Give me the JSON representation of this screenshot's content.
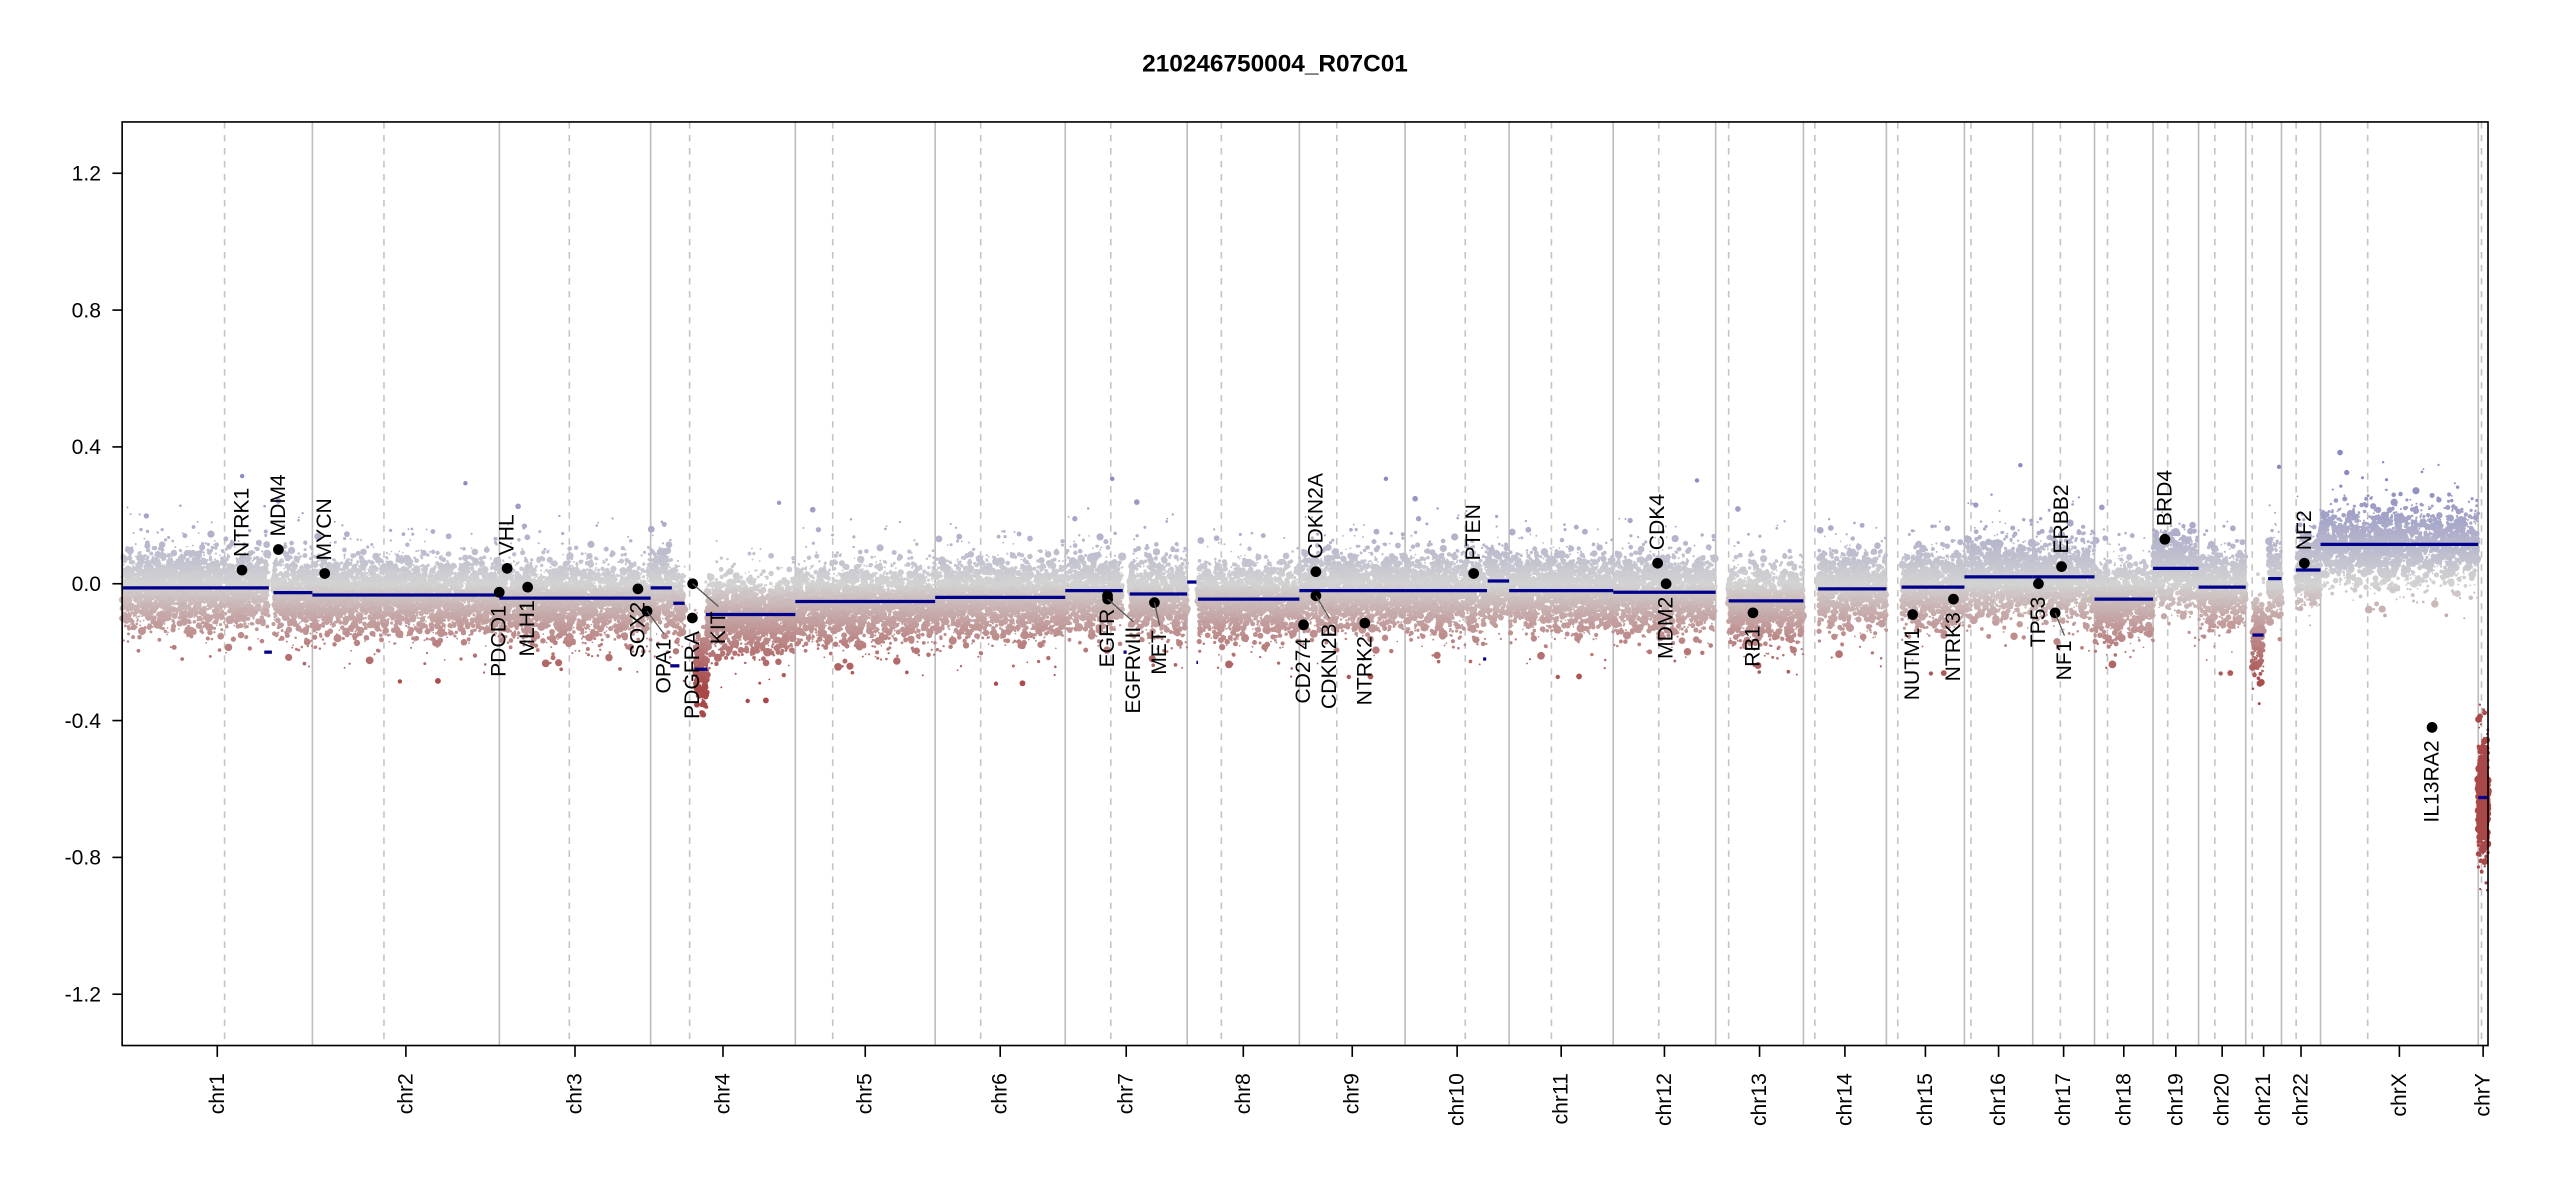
{
  "chart_data": {
    "type": "scatter",
    "title": "210246750004_R07C01",
    "xlabel": "",
    "ylabel": "",
    "ylim": [
      -1.35,
      1.35
    ],
    "yticks": [
      "1.2",
      "0.8",
      "0.4",
      "0.0",
      "-0.4",
      "-0.8",
      "-1.2"
    ],
    "ytick_values": [
      1.2,
      0.8,
      0.4,
      0.0,
      -0.4,
      -0.8,
      -1.2
    ],
    "grid": "chromosome boundaries (solid) and centromeres (dashed)",
    "chromosomes": [
      {
        "name": "chr1",
        "length_mb": 249
      },
      {
        "name": "chr2",
        "length_mb": 243
      },
      {
        "name": "chr3",
        "length_mb": 198
      },
      {
        "name": "chr4",
        "length_mb": 191
      },
      {
        "name": "chr5",
        "length_mb": 181
      },
      {
        "name": "chr6",
        "length_mb": 171
      },
      {
        "name": "chr7",
        "length_mb": 159
      },
      {
        "name": "chr8",
        "length_mb": 146
      },
      {
        "name": "chr9",
        "length_mb": 141
      },
      {
        "name": "chr10",
        "length_mb": 136
      },
      {
        "name": "chr11",
        "length_mb": 135
      },
      {
        "name": "chr12",
        "length_mb": 134
      },
      {
        "name": "chr13",
        "length_mb": 115
      },
      {
        "name": "chr14",
        "length_mb": 107
      },
      {
        "name": "chr15",
        "length_mb": 103
      },
      {
        "name": "chr16",
        "length_mb": 90
      },
      {
        "name": "chr17",
        "length_mb": 81
      },
      {
        "name": "chr18",
        "length_mb": 78
      },
      {
        "name": "chr19",
        "length_mb": 59
      },
      {
        "name": "chr20",
        "length_mb": 63
      },
      {
        "name": "chr21",
        "length_mb": 48
      },
      {
        "name": "chr22",
        "length_mb": 51
      },
      {
        "name": "chrX",
        "length_mb": 155
      },
      {
        "name": "chrY",
        "length_mb": 59
      }
    ],
    "segments": [
      {
        "chr": "chr1",
        "start": 0,
        "end": 192,
        "value": -0.012
      },
      {
        "chr": "chr1",
        "start": 186,
        "end": 196,
        "value": -0.2
      },
      {
        "chr": "chr1",
        "start": 198,
        "end": 249,
        "value": -0.026
      },
      {
        "chr": "chr2",
        "start": 0,
        "end": 243,
        "value": -0.033
      },
      {
        "chr": "chr3",
        "start": 0,
        "end": 198,
        "value": -0.042
      },
      {
        "chr": "chr4",
        "start": 0,
        "end": 28,
        "value": -0.012
      },
      {
        "chr": "chr4",
        "start": 26,
        "end": 38,
        "value": -0.24
      },
      {
        "chr": "chr4",
        "start": 30,
        "end": 45,
        "value": -0.057
      },
      {
        "chr": "chr4",
        "start": 58,
        "end": 75,
        "value": -0.25
      },
      {
        "chr": "chr4",
        "start": 73,
        "end": 191,
        "value": -0.09
      },
      {
        "chr": "chr5",
        "start": 0,
        "end": 181,
        "value": -0.052
      },
      {
        "chr": "chr6",
        "start": 0,
        "end": 171,
        "value": -0.04
      },
      {
        "chr": "chr7",
        "start": 0,
        "end": 75,
        "value": -0.02
      },
      {
        "chr": "chr7",
        "start": 76,
        "end": 80,
        "value": -0.2
      },
      {
        "chr": "chr7",
        "start": 84,
        "end": 159,
        "value": -0.03
      },
      {
        "chr": "chr8",
        "start": 0,
        "end": 12,
        "value": 0.005
      },
      {
        "chr": "chr8",
        "start": 12,
        "end": 14,
        "value": -0.23
      },
      {
        "chr": "chr8",
        "start": 14,
        "end": 146,
        "value": -0.045
      },
      {
        "chr": "chr9",
        "start": 0,
        "end": 141,
        "value": -0.02
      },
      {
        "chr": "chr10",
        "start": 0,
        "end": 107,
        "value": -0.02
      },
      {
        "chr": "chr10",
        "start": 102,
        "end": 106,
        "value": -0.22
      },
      {
        "chr": "chr10",
        "start": 108,
        "end": 136,
        "value": 0.008
      },
      {
        "chr": "chr11",
        "start": 0,
        "end": 135,
        "value": -0.02
      },
      {
        "chr": "chr12",
        "start": 0,
        "end": 134,
        "value": -0.025
      },
      {
        "chr": "chr13",
        "start": 17,
        "end": 115,
        "value": -0.05
      },
      {
        "chr": "chr14",
        "start": 19,
        "end": 107,
        "value": -0.015
      },
      {
        "chr": "chr15",
        "start": 20,
        "end": 103,
        "value": -0.01
      },
      {
        "chr": "chr16",
        "start": 0,
        "end": 90,
        "value": 0.02
      },
      {
        "chr": "chr17",
        "start": 0,
        "end": 81,
        "value": 0.02
      },
      {
        "chr": "chr18",
        "start": 0,
        "end": 78,
        "value": -0.045
      },
      {
        "chr": "chr19",
        "start": 0,
        "end": 59,
        "value": 0.045
      },
      {
        "chr": "chr20",
        "start": 0,
        "end": 63,
        "value": -0.01
      },
      {
        "chr": "chr21",
        "start": 9,
        "end": 24,
        "value": -0.15
      },
      {
        "chr": "chr21",
        "start": 30,
        "end": 48,
        "value": 0.015
      },
      {
        "chr": "chr22",
        "start": 19,
        "end": 51,
        "value": 0.04
      },
      {
        "chr": "chrX",
        "start": 0,
        "end": 155,
        "value": 0.115
      },
      {
        "chr": "chrY",
        "start": 0,
        "end": 59,
        "value": -0.625
      }
    ],
    "genes": [
      {
        "name": "NTRK1",
        "chr": "chr1",
        "pos": 156.8,
        "value": 0.04
      },
      {
        "name": "MDM4",
        "chr": "chr1",
        "pos": 204.5,
        "value": 0.1
      },
      {
        "name": "MYCN",
        "chr": "chr2",
        "pos": 16.0,
        "value": 0.03
      },
      {
        "name": "PDCD1",
        "chr": "chr2",
        "pos": 242.8,
        "value": -0.025
      },
      {
        "name": "VHL",
        "chr": "chr3",
        "pos": 10.2,
        "value": 0.045
      },
      {
        "name": "MLH1",
        "chr": "chr3",
        "pos": 37.0,
        "value": -0.01
      },
      {
        "name": "SOX2",
        "chr": "chr3",
        "pos": 181.4,
        "value": -0.015
      },
      {
        "name": "OPA1",
        "chr": "chr3",
        "pos": 193.3,
        "value": -0.08
      },
      {
        "name": "PDGFRA",
        "chr": "chr4",
        "pos": 55.1,
        "value": -0.1
      },
      {
        "name": "KIT",
        "chr": "chr4",
        "pos": 55.5,
        "value": 0.0
      },
      {
        "name": "EGFR",
        "chr": "chr7",
        "pos": 55.1,
        "value": -0.035
      },
      {
        "name": "EGFRvIII",
        "chr": "chr7",
        "pos": 55.3,
        "value": -0.045
      },
      {
        "name": "MET",
        "chr": "chr7",
        "pos": 116.3,
        "value": -0.055
      },
      {
        "name": "CD274",
        "chr": "chr9",
        "pos": 5.5,
        "value": -0.12
      },
      {
        "name": "CDKN2A",
        "chr": "chr9",
        "pos": 21.97,
        "value": 0.035
      },
      {
        "name": "CDKN2B",
        "chr": "chr9",
        "pos": 22.0,
        "value": -0.035
      },
      {
        "name": "NTRK2",
        "chr": "chr9",
        "pos": 87.3,
        "value": -0.115
      },
      {
        "name": "PTEN",
        "chr": "chr10",
        "pos": 89.6,
        "value": 0.03
      },
      {
        "name": "CDK4",
        "chr": "chr12",
        "pos": 58.1,
        "value": 0.06
      },
      {
        "name": "MDM2",
        "chr": "chr12",
        "pos": 69.2,
        "value": 0.0
      },
      {
        "name": "RB1",
        "chr": "chr13",
        "pos": 48.9,
        "value": -0.085
      },
      {
        "name": "NUTM1",
        "chr": "chr15",
        "pos": 34.6,
        "value": -0.09
      },
      {
        "name": "NTRK3",
        "chr": "chr15",
        "pos": 88.5,
        "value": -0.045
      },
      {
        "name": "TP53",
        "chr": "chr17",
        "pos": 7.5,
        "value": 0.0
      },
      {
        "name": "NF1",
        "chr": "chr17",
        "pos": 29.4,
        "value": -0.085
      },
      {
        "name": "ERBB2",
        "chr": "chr17",
        "pos": 37.8,
        "value": 0.05
      },
      {
        "name": "BRD4",
        "chr": "chr19",
        "pos": 15.3,
        "value": 0.13
      },
      {
        "name": "NF2",
        "chr": "chr22",
        "pos": 29.9,
        "value": 0.06
      },
      {
        "name": "IL13RA2",
        "chr": "chrX",
        "pos": 109.6,
        "value": -0.42
      }
    ],
    "colors": {
      "gain": "#8a8ac2",
      "neutral": "#d3d3d3",
      "loss": "#a84848",
      "segment": "#00008b",
      "gene": "#000000"
    }
  }
}
